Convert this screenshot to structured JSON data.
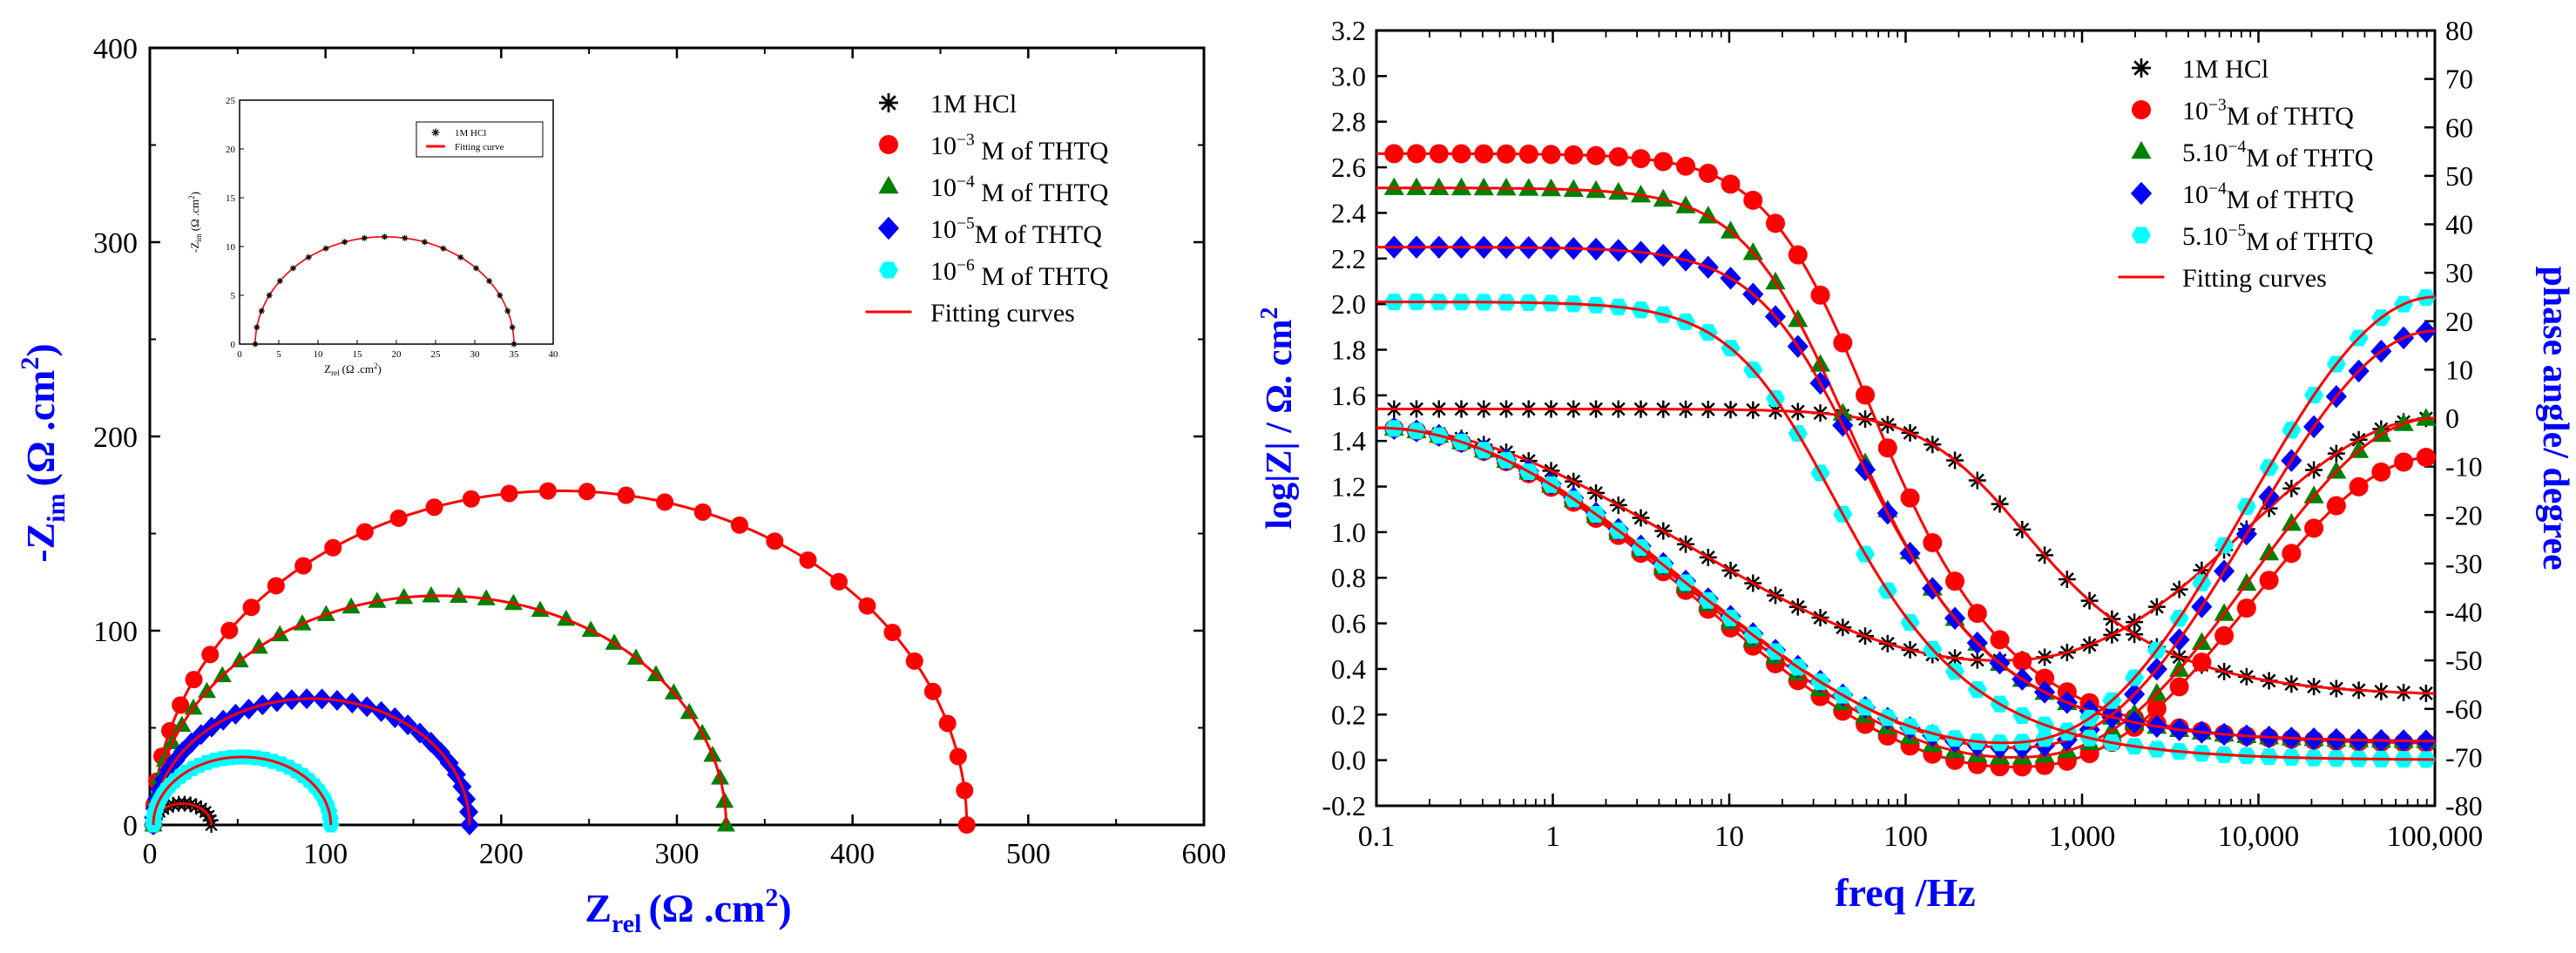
{
  "chart_data": [
    {
      "type": "scatter",
      "title": "",
      "xlabel_main": "Z",
      "xlabel_sub": "rel",
      "xlabel_unit": "(Ω .cm",
      "xlabel_sup": "2",
      "xlabel_close": ")",
      "ylabel_main": "-Z",
      "ylabel_sub": "im",
      "ylabel_unit": "(Ω .cm",
      "ylabel_sup": "2",
      "ylabel_close": ")",
      "xlim": [
        0,
        600
      ],
      "ylim": [
        0,
        400
      ],
      "xticks": [
        "0",
        "100",
        "200",
        "300",
        "400",
        "500",
        "600"
      ],
      "yticks": [
        "0",
        "100",
        "200",
        "300",
        "400"
      ],
      "legend_position": "top-right",
      "legend": [
        {
          "label": "1M HCl",
          "marker": "star",
          "color": "#000000"
        },
        {
          "base": "10",
          "exp": "−3",
          "label": " M   of THTQ",
          "marker": "circle",
          "color": "#ff0000"
        },
        {
          "base": "10",
          "exp": "−4",
          "label": " M of THTQ",
          "marker": "triangle",
          "color": "#008000"
        },
        {
          "base": "10",
          "exp": "−5",
          "label": "M   of THTQ",
          "marker": "diamond",
          "color": "#0000ff"
        },
        {
          "base": "10",
          "exp": "−6",
          "label": " M of THTQ",
          "marker": "hexagon",
          "color": "#00ffff"
        },
        {
          "label": "Fitting curves",
          "marker": "line",
          "color": "#ff0000"
        }
      ],
      "series": [
        {
          "name": "1M HCl",
          "marker": "star",
          "color": "#000000",
          "r_start": 2,
          "r_end": 35,
          "peak": 11
        },
        {
          "name": "10^-3 M of THTQ",
          "marker": "circle",
          "color": "#ff0000",
          "r_start": 2,
          "r_end": 465,
          "peak": 172
        },
        {
          "name": "10^-4 M of THTQ",
          "marker": "triangle",
          "color": "#008000",
          "r_start": 2,
          "r_end": 328,
          "peak": 118
        },
        {
          "name": "10^-5 M of THTQ",
          "marker": "diamond",
          "color": "#0000ff",
          "r_start": 2,
          "r_end": 182,
          "peak": 65
        },
        {
          "name": "10^-6 M of THTQ",
          "marker": "hexagon",
          "color": "#00ffff",
          "r_start": 2,
          "r_end": 103,
          "peak": 35
        }
      ],
      "inset": {
        "xlabel_main": "Z",
        "xlabel_sub": "rel",
        "xlabel_unit": "(Ω .cm",
        "xlabel_sup": "2",
        "xlabel_close": ")",
        "ylabel_main": "-Z",
        "ylabel_sub": "im",
        "ylabel_unit": "(Ω .cm",
        "ylabel_sup": "2",
        "ylabel_close": ")",
        "xlim": [
          0,
          40
        ],
        "ylim": [
          0,
          25
        ],
        "xticks": [
          "0",
          "5",
          "10",
          "15",
          "20",
          "25",
          "30",
          "35",
          "40"
        ],
        "yticks": [
          "0",
          "5",
          "10",
          "15",
          "20",
          "25"
        ],
        "legend": [
          {
            "label": "1M HCl",
            "marker": "star",
            "color": "#000000"
          },
          {
            "label": "Fitting curve",
            "marker": "line",
            "color": "#ff0000"
          }
        ],
        "series": {
          "r_start": 2,
          "r_end": 35,
          "peak": 11
        }
      }
    },
    {
      "type": "line",
      "title": "",
      "xlabel": "freq /Hz",
      "ylabel_left": "log|Z|  / Ω. cm",
      "ylabel_left_sup": "2",
      "ylabel_right": "phase angle/ degree",
      "xlim": [
        0.1,
        100000
      ],
      "xscale": "log",
      "ylim_left": [
        -0.2,
        3.2
      ],
      "ylim_right": [
        -80,
        80
      ],
      "xticks": [
        "0.1",
        "1",
        "10",
        "100",
        "1,000",
        "10,000",
        "100,000"
      ],
      "yticks_left": [
        "-0.2",
        "0.0",
        "0.2",
        "0.4",
        "0.6",
        "0.8",
        "1.0",
        "1.2",
        "1.4",
        "1.6",
        "1.8",
        "2.0",
        "2.2",
        "2.4",
        "2.6",
        "2.8",
        "3.0",
        "3.2"
      ],
      "yticks_right": [
        "-80",
        "-70",
        "-60",
        "-50",
        "-40",
        "-30",
        "-20",
        "-10",
        "0",
        "10",
        "20",
        "30",
        "40",
        "50",
        "60",
        "70",
        "80"
      ],
      "legend_position": "top-right",
      "legend": [
        {
          "label": "1M HCl",
          "marker": "star",
          "color": "#000000"
        },
        {
          "base": "10",
          "exp": "−3",
          "label": "M   of THTQ",
          "marker": "circle",
          "color": "#ff0000"
        },
        {
          "base": "5.10",
          "exp": "−4",
          "label": "M of THTQ",
          "marker": "triangle",
          "color": "#008000"
        },
        {
          "base": "10",
          "exp": "−4",
          "label": "M   of THTQ",
          "marker": "diamond",
          "color": "#0000ff"
        },
        {
          "base": "5.10",
          "exp": "−5",
          "label": "M of THTQ",
          "marker": "hexagon",
          "color": "#00ffff"
        },
        {
          "label": "Fitting curves",
          "marker": "line",
          "color": "#ff0000"
        }
      ],
      "series": [
        {
          "name": "1M HCl",
          "marker": "star",
          "color": "#000000",
          "logz_low": 1.54,
          "logz_high": 0.28,
          "logz_fc": 300,
          "phase_min": -50,
          "phase_fmin": 320,
          "phase_end": 0
        },
        {
          "name": "10^-3 M of THTQ",
          "marker": "circle",
          "color": "#ff0000",
          "logz_low": 2.66,
          "logz_high": 0.07,
          "logz_fc": 40,
          "phase_min": -72,
          "phase_fmin": 400,
          "phase_end": -8
        },
        {
          "name": "5.10^-4 M of THTQ",
          "marker": "triangle",
          "color": "#008000",
          "logz_low": 2.51,
          "logz_high": 0.08,
          "logz_fc": 30,
          "phase_min": -70,
          "phase_fmin": 400,
          "phase_end": 0
        },
        {
          "name": "10^-4 M of THTQ",
          "marker": "diamond",
          "color": "#0000ff",
          "logz_low": 2.25,
          "logz_high": 0.08,
          "logz_fc": 35,
          "phase_min": -68,
          "phase_fmin": 400,
          "phase_end": 18
        },
        {
          "name": "5.10^-5 M of THTQ",
          "marker": "hexagon",
          "color": "#00ffff",
          "logz_low": 2.01,
          "logz_high": 0.0,
          "logz_fc": 25,
          "phase_min": -67,
          "phase_fmin": 350,
          "phase_end": 25
        }
      ]
    }
  ]
}
